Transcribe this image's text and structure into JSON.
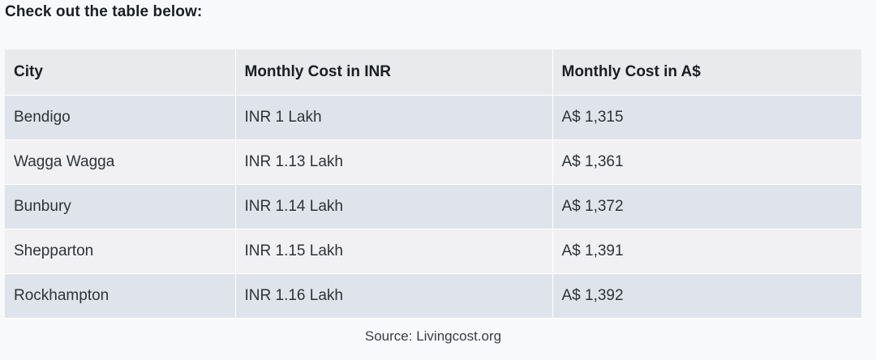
{
  "heading": "Check out the table below:",
  "table": {
    "headers": [
      "City",
      "Monthly Cost in INR",
      "Monthly Cost in A$"
    ],
    "rows": [
      [
        "Bendigo",
        "INR 1 Lakh",
        "A$ 1,315"
      ],
      [
        "Wagga Wagga",
        "INR 1.13 Lakh",
        "A$ 1,361"
      ],
      [
        "Bunbury",
        "INR 1.14 Lakh",
        "A$ 1,372"
      ],
      [
        "Shepparton",
        "INR 1.15 Lakh",
        "A$ 1,391"
      ],
      [
        "Rockhampton",
        "INR 1.16 Lakh",
        "A$ 1,392"
      ]
    ]
  },
  "source": "Source: Livingcost.org"
}
